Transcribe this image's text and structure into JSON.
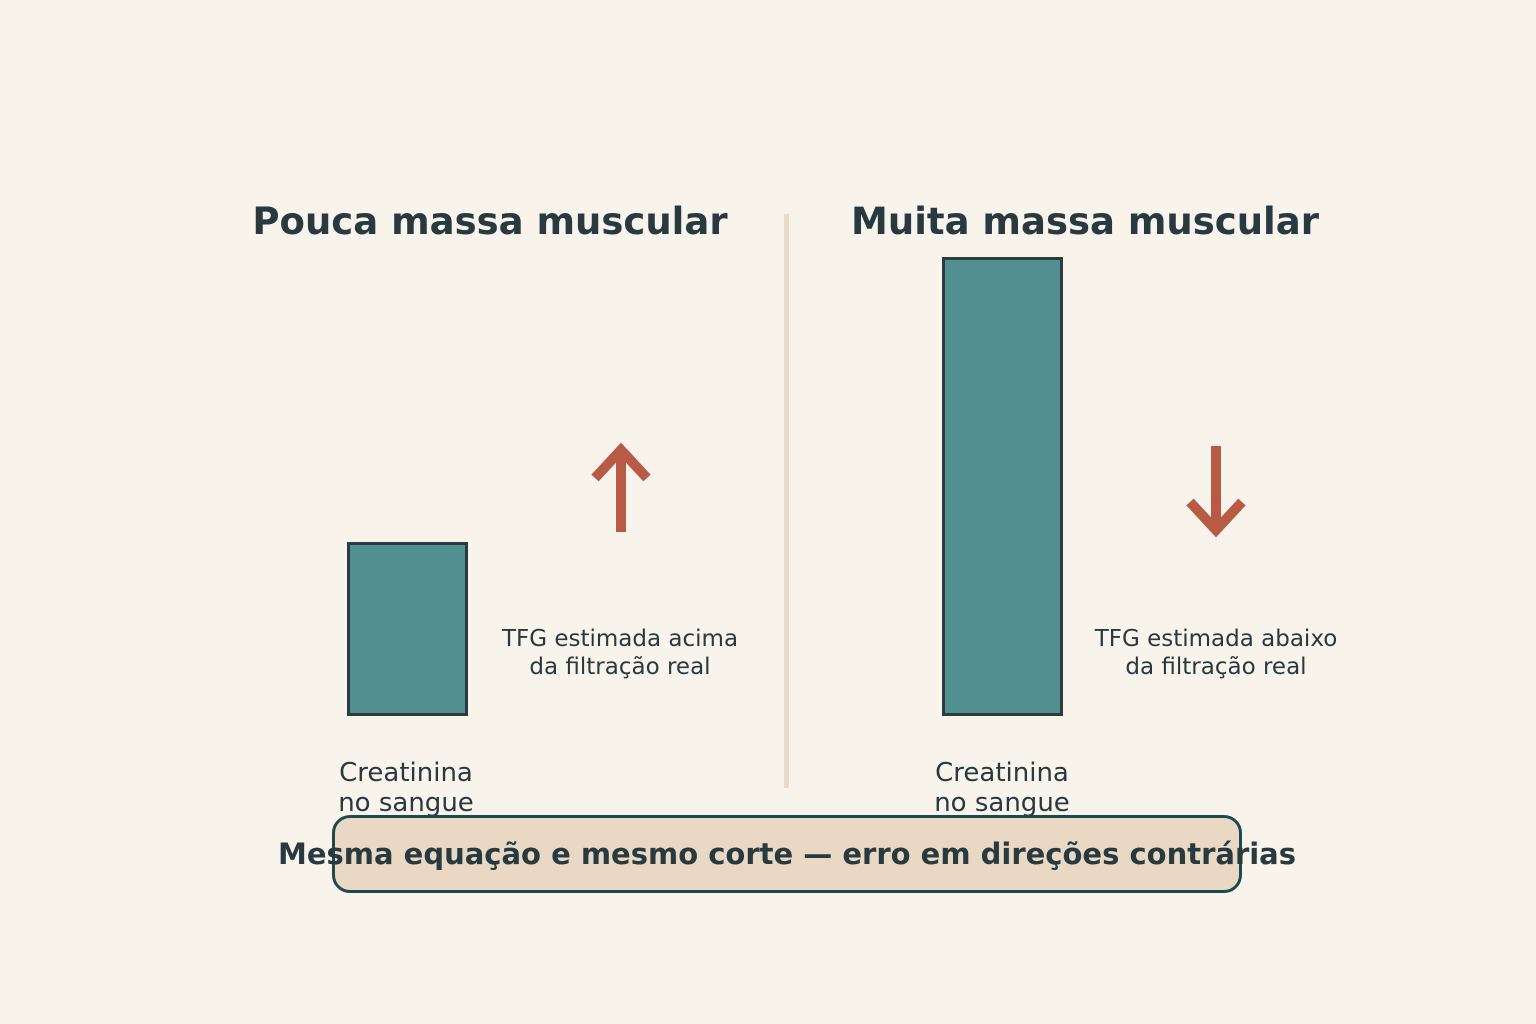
{
  "colors": {
    "background": "#f8f4ec",
    "bar_fill": "#528f91",
    "bar_border": "#2a3c40",
    "arrow": "#b85a45",
    "divider": "#eadcc4",
    "summary_fill": "#e9d8c4",
    "summary_border": "#1e4a4f",
    "text": "#283a3f"
  },
  "left_panel": {
    "title": "Pouca massa muscular",
    "bar_label_line1": "Creatinina",
    "bar_label_line2": "no sangue",
    "bar_level": 0.38,
    "arrow_direction": "up",
    "arrow_icon": "arrow-up-icon",
    "note_line1": "TFG estimada acima",
    "note_line2": "da filtração real"
  },
  "right_panel": {
    "title": "Muita massa muscular",
    "bar_label_line1": "Creatinina",
    "bar_label_line2": "no sangue",
    "bar_level": 1.0,
    "arrow_direction": "down",
    "arrow_icon": "arrow-down-icon",
    "note_line1": "TFG estimada abaixo",
    "note_line2": "da filtração real"
  },
  "summary": {
    "text": "Mesma equação e mesmo corte — erro em direções contrárias"
  }
}
